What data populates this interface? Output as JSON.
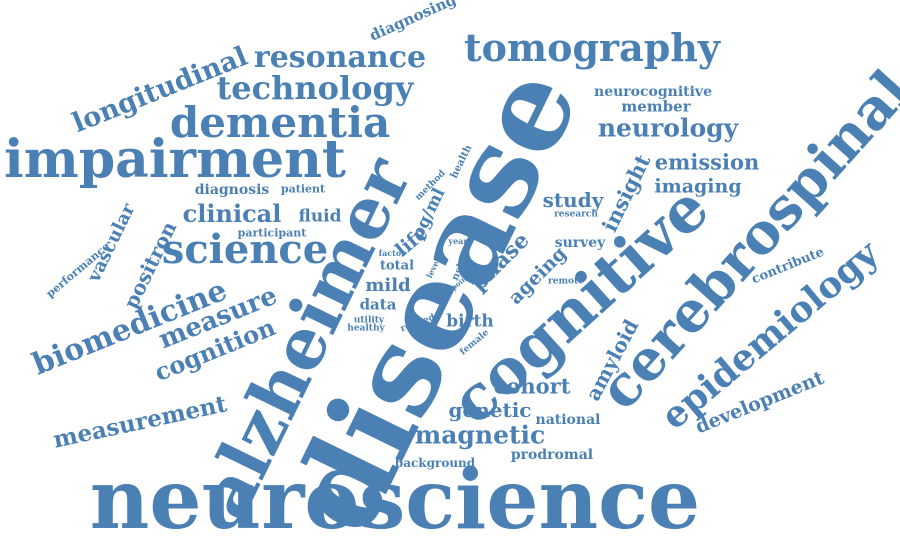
{
  "accent_color": "#4a80b4",
  "background_color": "#ffffff",
  "words": [
    "neuroscience",
    "disease",
    "alzheimer",
    "cognitive",
    "cerebrospinal",
    "impairment",
    "epidemiology",
    "dementia",
    "tomography",
    "science",
    "resonance",
    "technology",
    "longitudinal",
    "biomedicine",
    "neurology",
    "measure",
    "cognition",
    "measurement",
    "magnetic",
    "development",
    "clinical",
    "positron",
    "vascular",
    "emission",
    "imaging",
    "study",
    "insight",
    "phase",
    "cohort",
    "genetic",
    "amyloid",
    "fluid",
    "member",
    "neurocognitive",
    "diagnosing",
    "diagnosis",
    "patient",
    "participant",
    "performance",
    "pg/ml",
    "method",
    "health",
    "life",
    "factor",
    "year",
    "nshd",
    "total",
    "level",
    "point",
    "mild",
    "data",
    "utility",
    "healthy",
    "related",
    "birth",
    "female",
    "ageing",
    "survey",
    "research",
    "remote",
    "contribute",
    "national",
    "prodromal",
    "background"
  ]
}
